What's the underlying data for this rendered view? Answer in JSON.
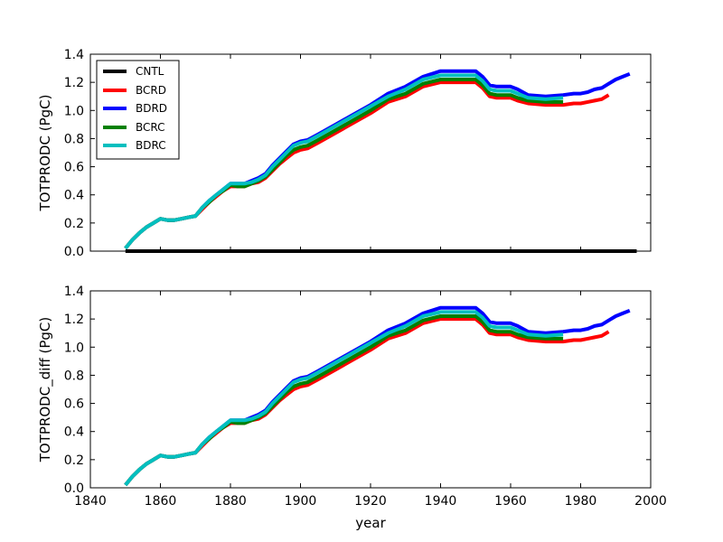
{
  "chart_data": [
    {
      "type": "line",
      "ylabel": "TOTPRODC (PgC)",
      "xlabel": "",
      "xlim": [
        1840,
        2000
      ],
      "ylim": [
        0.0,
        1.4
      ],
      "xticks": [
        1840,
        1860,
        1880,
        1900,
        1920,
        1940,
        1960,
        1980,
        2000
      ],
      "xtick_labels_visible": false,
      "yticks": [
        0.0,
        0.2,
        0.4,
        0.6,
        0.8,
        1.0,
        1.2,
        1.4
      ],
      "ytick_labels": [
        "0.0",
        "0.2",
        "0.4",
        "0.6",
        "0.8",
        "1.0",
        "1.2",
        "1.4"
      ],
      "legend": {
        "placement": "top-left",
        "entries": [
          "CNTL",
          "BCRD",
          "BDRD",
          "BCRC",
          "BDRC"
        ]
      },
      "series": [
        {
          "name": "CNTL",
          "color": "#000000",
          "x": [
            1850,
            1996
          ],
          "values": [
            0.0,
            0.0
          ]
        },
        {
          "name": "BDRD",
          "color": "#0000ff",
          "x": [
            1850,
            1852,
            1854,
            1856,
            1858,
            1860,
            1862,
            1864,
            1866,
            1868,
            1870,
            1872,
            1874,
            1876,
            1878,
            1880,
            1882,
            1884,
            1886,
            1888,
            1890,
            1892,
            1894,
            1896,
            1898,
            1900,
            1902,
            1905,
            1910,
            1915,
            1920,
            1925,
            1930,
            1935,
            1940,
            1945,
            1950,
            1952,
            1954,
            1956,
            1958,
            1960,
            1962,
            1965,
            1970,
            1975,
            1978,
            1980,
            1982,
            1984,
            1986,
            1988,
            1990,
            1992,
            1994
          ],
          "values": [
            0.02,
            0.08,
            0.13,
            0.17,
            0.2,
            0.23,
            0.22,
            0.22,
            0.23,
            0.24,
            0.25,
            0.31,
            0.36,
            0.4,
            0.44,
            0.48,
            0.48,
            0.48,
            0.5,
            0.52,
            0.55,
            0.61,
            0.66,
            0.71,
            0.76,
            0.78,
            0.79,
            0.83,
            0.9,
            0.97,
            1.04,
            1.12,
            1.17,
            1.24,
            1.28,
            1.28,
            1.28,
            1.24,
            1.18,
            1.17,
            1.17,
            1.17,
            1.15,
            1.11,
            1.1,
            1.11,
            1.12,
            1.12,
            1.13,
            1.15,
            1.16,
            1.19,
            1.22,
            1.24,
            1.26
          ]
        },
        {
          "name": "BCRD",
          "color": "#ff0000",
          "x": [
            1850,
            1852,
            1854,
            1856,
            1858,
            1860,
            1862,
            1864,
            1866,
            1868,
            1870,
            1872,
            1874,
            1876,
            1878,
            1880,
            1882,
            1884,
            1886,
            1888,
            1890,
            1892,
            1894,
            1896,
            1898,
            1900,
            1902,
            1905,
            1910,
            1915,
            1920,
            1925,
            1930,
            1935,
            1940,
            1945,
            1950,
            1952,
            1954,
            1956,
            1958,
            1960,
            1962,
            1965,
            1970,
            1975,
            1978,
            1980,
            1982,
            1984,
            1986,
            1988
          ],
          "values": [
            0.02,
            0.08,
            0.13,
            0.17,
            0.2,
            0.23,
            0.22,
            0.22,
            0.23,
            0.24,
            0.25,
            0.3,
            0.35,
            0.39,
            0.43,
            0.46,
            0.46,
            0.46,
            0.48,
            0.49,
            0.52,
            0.57,
            0.62,
            0.66,
            0.7,
            0.72,
            0.73,
            0.77,
            0.84,
            0.91,
            0.98,
            1.06,
            1.1,
            1.17,
            1.2,
            1.2,
            1.2,
            1.16,
            1.1,
            1.09,
            1.09,
            1.09,
            1.07,
            1.05,
            1.04,
            1.04,
            1.05,
            1.05,
            1.06,
            1.07,
            1.08,
            1.11
          ]
        },
        {
          "name": "BCRC",
          "color": "#008000",
          "x": [
            1850,
            1852,
            1854,
            1856,
            1858,
            1860,
            1862,
            1864,
            1866,
            1868,
            1870,
            1872,
            1874,
            1876,
            1878,
            1880,
            1882,
            1884,
            1886,
            1888,
            1890,
            1892,
            1894,
            1896,
            1898,
            1900,
            1902,
            1905,
            1910,
            1915,
            1920,
            1925,
            1930,
            1935,
            1940,
            1945,
            1950,
            1952,
            1954,
            1956,
            1958,
            1960,
            1962,
            1965,
            1970,
            1975
          ],
          "values": [
            0.02,
            0.08,
            0.13,
            0.17,
            0.2,
            0.23,
            0.22,
            0.22,
            0.23,
            0.24,
            0.25,
            0.31,
            0.35,
            0.4,
            0.43,
            0.47,
            0.46,
            0.46,
            0.48,
            0.5,
            0.53,
            0.58,
            0.63,
            0.68,
            0.72,
            0.74,
            0.75,
            0.79,
            0.86,
            0.93,
            1.0,
            1.08,
            1.12,
            1.19,
            1.22,
            1.22,
            1.22,
            1.18,
            1.12,
            1.11,
            1.11,
            1.11,
            1.09,
            1.07,
            1.06,
            1.06
          ]
        },
        {
          "name": "BDRC",
          "color": "#00bfbf",
          "x": [
            1850,
            1852,
            1854,
            1856,
            1858,
            1860,
            1862,
            1864,
            1866,
            1868,
            1870,
            1872,
            1874,
            1876,
            1878,
            1880,
            1882,
            1884,
            1886,
            1888,
            1890,
            1892,
            1894,
            1896,
            1898,
            1900,
            1902,
            1905,
            1910,
            1915,
            1920,
            1925,
            1930,
            1935,
            1940,
            1945,
            1950,
            1952,
            1954,
            1956,
            1958,
            1960,
            1962,
            1965,
            1970,
            1975
          ],
          "values": [
            0.02,
            0.08,
            0.13,
            0.17,
            0.2,
            0.23,
            0.22,
            0.22,
            0.23,
            0.24,
            0.25,
            0.31,
            0.36,
            0.4,
            0.44,
            0.48,
            0.48,
            0.48,
            0.49,
            0.51,
            0.54,
            0.6,
            0.65,
            0.7,
            0.75,
            0.77,
            0.78,
            0.82,
            0.89,
            0.96,
            1.03,
            1.1,
            1.15,
            1.22,
            1.25,
            1.25,
            1.25,
            1.21,
            1.15,
            1.14,
            1.14,
            1.14,
            1.12,
            1.09,
            1.08,
            1.09
          ]
        }
      ]
    },
    {
      "type": "line",
      "ylabel": "TOTPRODC_diff (PgC)",
      "xlabel": "year",
      "xlim": [
        1840,
        2000
      ],
      "ylim": [
        0.0,
        1.4
      ],
      "xticks": [
        1840,
        1860,
        1880,
        1900,
        1920,
        1940,
        1960,
        1980,
        2000
      ],
      "xtick_labels": [
        "1840",
        "1860",
        "1880",
        "1900",
        "1920",
        "1940",
        "1960",
        "1980",
        "2000"
      ],
      "yticks": [
        0.0,
        0.2,
        0.4,
        0.6,
        0.8,
        1.0,
        1.2,
        1.4
      ],
      "ytick_labels": [
        "0.0",
        "0.2",
        "0.4",
        "0.6",
        "0.8",
        "1.0",
        "1.2",
        "1.4"
      ],
      "series": [
        {
          "name": "BDRD",
          "color": "#0000ff",
          "x": [
            1850,
            1852,
            1854,
            1856,
            1858,
            1860,
            1862,
            1864,
            1866,
            1868,
            1870,
            1872,
            1874,
            1876,
            1878,
            1880,
            1882,
            1884,
            1886,
            1888,
            1890,
            1892,
            1894,
            1896,
            1898,
            1900,
            1902,
            1905,
            1910,
            1915,
            1920,
            1925,
            1930,
            1935,
            1940,
            1945,
            1950,
            1952,
            1954,
            1956,
            1958,
            1960,
            1962,
            1965,
            1970,
            1975,
            1978,
            1980,
            1982,
            1984,
            1986,
            1988,
            1990,
            1992,
            1994
          ],
          "values": [
            0.02,
            0.08,
            0.13,
            0.17,
            0.2,
            0.23,
            0.22,
            0.22,
            0.23,
            0.24,
            0.25,
            0.31,
            0.36,
            0.4,
            0.44,
            0.48,
            0.48,
            0.48,
            0.5,
            0.52,
            0.55,
            0.61,
            0.66,
            0.71,
            0.76,
            0.78,
            0.79,
            0.83,
            0.9,
            0.97,
            1.04,
            1.12,
            1.17,
            1.24,
            1.28,
            1.28,
            1.28,
            1.24,
            1.18,
            1.17,
            1.17,
            1.17,
            1.15,
            1.11,
            1.1,
            1.11,
            1.12,
            1.12,
            1.13,
            1.15,
            1.16,
            1.19,
            1.22,
            1.24,
            1.26
          ]
        },
        {
          "name": "BCRD",
          "color": "#ff0000",
          "x": [
            1850,
            1852,
            1854,
            1856,
            1858,
            1860,
            1862,
            1864,
            1866,
            1868,
            1870,
            1872,
            1874,
            1876,
            1878,
            1880,
            1882,
            1884,
            1886,
            1888,
            1890,
            1892,
            1894,
            1896,
            1898,
            1900,
            1902,
            1905,
            1910,
            1915,
            1920,
            1925,
            1930,
            1935,
            1940,
            1945,
            1950,
            1952,
            1954,
            1956,
            1958,
            1960,
            1962,
            1965,
            1970,
            1975,
            1978,
            1980,
            1982,
            1984,
            1986,
            1988
          ],
          "values": [
            0.02,
            0.08,
            0.13,
            0.17,
            0.2,
            0.23,
            0.22,
            0.22,
            0.23,
            0.24,
            0.25,
            0.3,
            0.35,
            0.39,
            0.43,
            0.46,
            0.46,
            0.46,
            0.48,
            0.49,
            0.52,
            0.57,
            0.62,
            0.66,
            0.7,
            0.72,
            0.73,
            0.77,
            0.84,
            0.91,
            0.98,
            1.06,
            1.1,
            1.17,
            1.2,
            1.2,
            1.2,
            1.16,
            1.1,
            1.09,
            1.09,
            1.09,
            1.07,
            1.05,
            1.04,
            1.04,
            1.05,
            1.05,
            1.06,
            1.07,
            1.08,
            1.11
          ]
        },
        {
          "name": "BCRC",
          "color": "#008000",
          "x": [
            1850,
            1852,
            1854,
            1856,
            1858,
            1860,
            1862,
            1864,
            1866,
            1868,
            1870,
            1872,
            1874,
            1876,
            1878,
            1880,
            1882,
            1884,
            1886,
            1888,
            1890,
            1892,
            1894,
            1896,
            1898,
            1900,
            1902,
            1905,
            1910,
            1915,
            1920,
            1925,
            1930,
            1935,
            1940,
            1945,
            1950,
            1952,
            1954,
            1956,
            1958,
            1960,
            1962,
            1965,
            1970,
            1975
          ],
          "values": [
            0.02,
            0.08,
            0.13,
            0.17,
            0.2,
            0.23,
            0.22,
            0.22,
            0.23,
            0.24,
            0.25,
            0.31,
            0.35,
            0.4,
            0.43,
            0.47,
            0.46,
            0.46,
            0.48,
            0.5,
            0.53,
            0.58,
            0.63,
            0.68,
            0.72,
            0.74,
            0.75,
            0.79,
            0.86,
            0.93,
            1.0,
            1.08,
            1.12,
            1.19,
            1.22,
            1.22,
            1.22,
            1.18,
            1.12,
            1.11,
            1.11,
            1.11,
            1.09,
            1.07,
            1.06,
            1.06
          ]
        },
        {
          "name": "BDRC",
          "color": "#00bfbf",
          "x": [
            1850,
            1852,
            1854,
            1856,
            1858,
            1860,
            1862,
            1864,
            1866,
            1868,
            1870,
            1872,
            1874,
            1876,
            1878,
            1880,
            1882,
            1884,
            1886,
            1888,
            1890,
            1892,
            1894,
            1896,
            1898,
            1900,
            1902,
            1905,
            1910,
            1915,
            1920,
            1925,
            1930,
            1935,
            1940,
            1945,
            1950,
            1952,
            1954,
            1956,
            1958,
            1960,
            1962,
            1965,
            1970,
            1975
          ],
          "values": [
            0.02,
            0.08,
            0.13,
            0.17,
            0.2,
            0.23,
            0.22,
            0.22,
            0.23,
            0.24,
            0.25,
            0.31,
            0.36,
            0.4,
            0.44,
            0.48,
            0.48,
            0.48,
            0.49,
            0.51,
            0.54,
            0.6,
            0.65,
            0.7,
            0.75,
            0.77,
            0.78,
            0.82,
            0.89,
            0.96,
            1.03,
            1.1,
            1.15,
            1.22,
            1.25,
            1.25,
            1.25,
            1.21,
            1.15,
            1.14,
            1.14,
            1.14,
            1.12,
            1.09,
            1.08,
            1.09
          ]
        }
      ]
    }
  ]
}
